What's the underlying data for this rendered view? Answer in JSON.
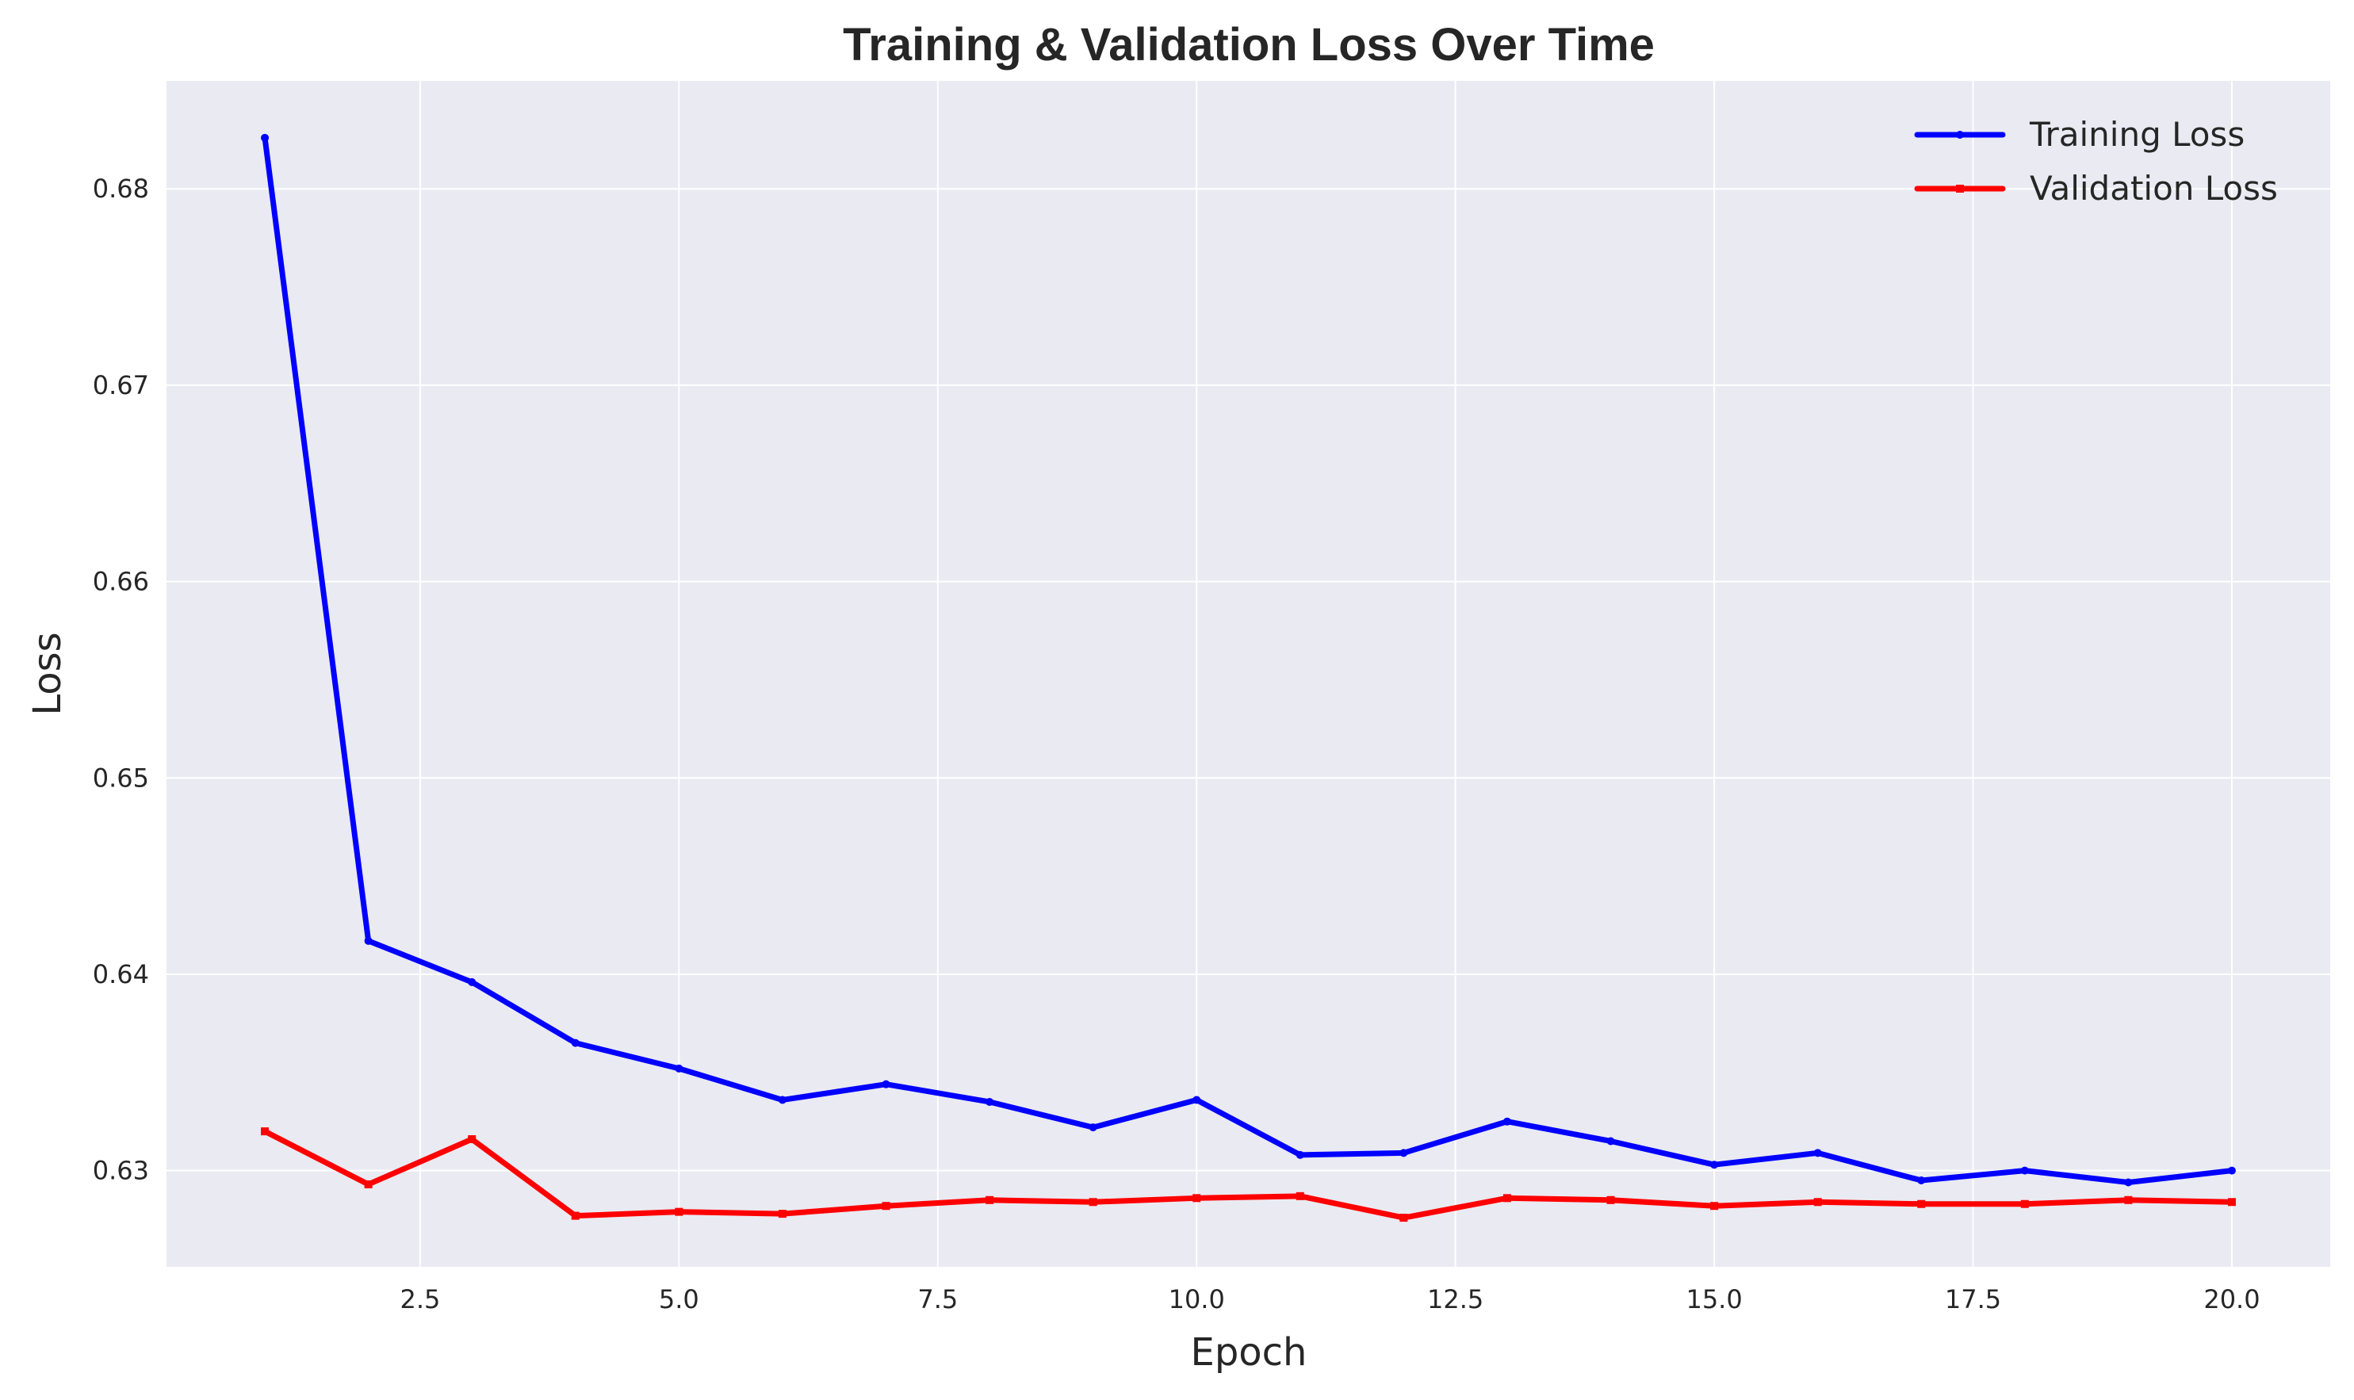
{
  "chart_data": {
    "type": "line",
    "title": "Training & Validation Loss Over Time",
    "xlabel": "Epoch",
    "ylabel": "Loss",
    "xlim": [
      0.05,
      20.95
    ],
    "ylim": [
      0.6251,
      0.6855
    ],
    "xticks": [
      2.5,
      5.0,
      7.5,
      10.0,
      12.5,
      15.0,
      17.5,
      20.0
    ],
    "xtick_labels": [
      "2.5",
      "5.0",
      "7.5",
      "10.0",
      "12.5",
      "15.0",
      "17.5",
      "20.0"
    ],
    "yticks": [
      0.63,
      0.64,
      0.65,
      0.66,
      0.67,
      0.68
    ],
    "ytick_labels": [
      "0.63",
      "0.64",
      "0.65",
      "0.66",
      "0.67",
      "0.68"
    ],
    "grid": true,
    "legend_position": "top-right",
    "x": [
      1,
      2,
      3,
      4,
      5,
      6,
      7,
      8,
      9,
      10,
      11,
      12,
      13,
      14,
      15,
      16,
      17,
      18,
      19,
      20
    ],
    "series": [
      {
        "name": "Training Loss",
        "color": "#0000ff",
        "marker": "circle",
        "values": [
          0.6826,
          0.6417,
          0.6396,
          0.6365,
          0.6352,
          0.6336,
          0.6344,
          0.6335,
          0.6322,
          0.6336,
          0.6308,
          0.6309,
          0.6325,
          0.6315,
          0.6303,
          0.6309,
          0.6295,
          0.63,
          0.6294,
          0.63
        ]
      },
      {
        "name": "Validation Loss",
        "color": "#ff0000",
        "marker": "square",
        "values": [
          0.632,
          0.6293,
          0.6316,
          0.6277,
          0.6279,
          0.6278,
          0.6282,
          0.6285,
          0.6284,
          0.6286,
          0.6287,
          0.6276,
          0.6286,
          0.6285,
          0.6282,
          0.6284,
          0.6283,
          0.6283,
          0.6285,
          0.6284
        ]
      }
    ]
  },
  "style": {
    "plot_background": "#eaeaf2",
    "grid_color": "#ffffff",
    "text_color": "#262626"
  }
}
